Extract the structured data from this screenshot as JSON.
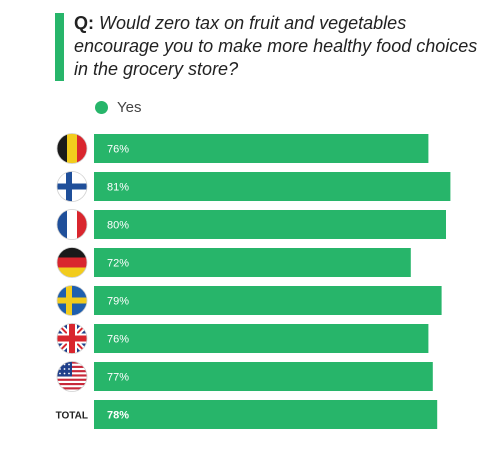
{
  "question": {
    "prefix": "Q:",
    "text": "Would zero tax on fruit and vegetables encourage you to make more healthy food choices in the grocery store?"
  },
  "colors": {
    "accent": "#27b56a"
  },
  "chart_data": {
    "type": "bar",
    "orientation": "horizontal",
    "categories": [
      "Belgium",
      "Finland",
      "France",
      "Germany",
      "Sweden",
      "United Kingdom",
      "United States",
      "TOTAL"
    ],
    "category_icons": [
      "flag-belgium",
      "flag-finland",
      "flag-france",
      "flag-germany",
      "flag-sweden",
      "flag-uk",
      "flag-usa",
      null
    ],
    "total_label": "TOTAL",
    "series": [
      {
        "name": "Yes",
        "values": [
          76,
          81,
          80,
          72,
          79,
          76,
          77,
          78
        ]
      }
    ],
    "value_labels": [
      "76%",
      "81%",
      "80%",
      "72%",
      "79%",
      "76%",
      "77%",
      "78%"
    ],
    "xlim": [
      0,
      100
    ],
    "legend": "top-left",
    "grid": false
  }
}
